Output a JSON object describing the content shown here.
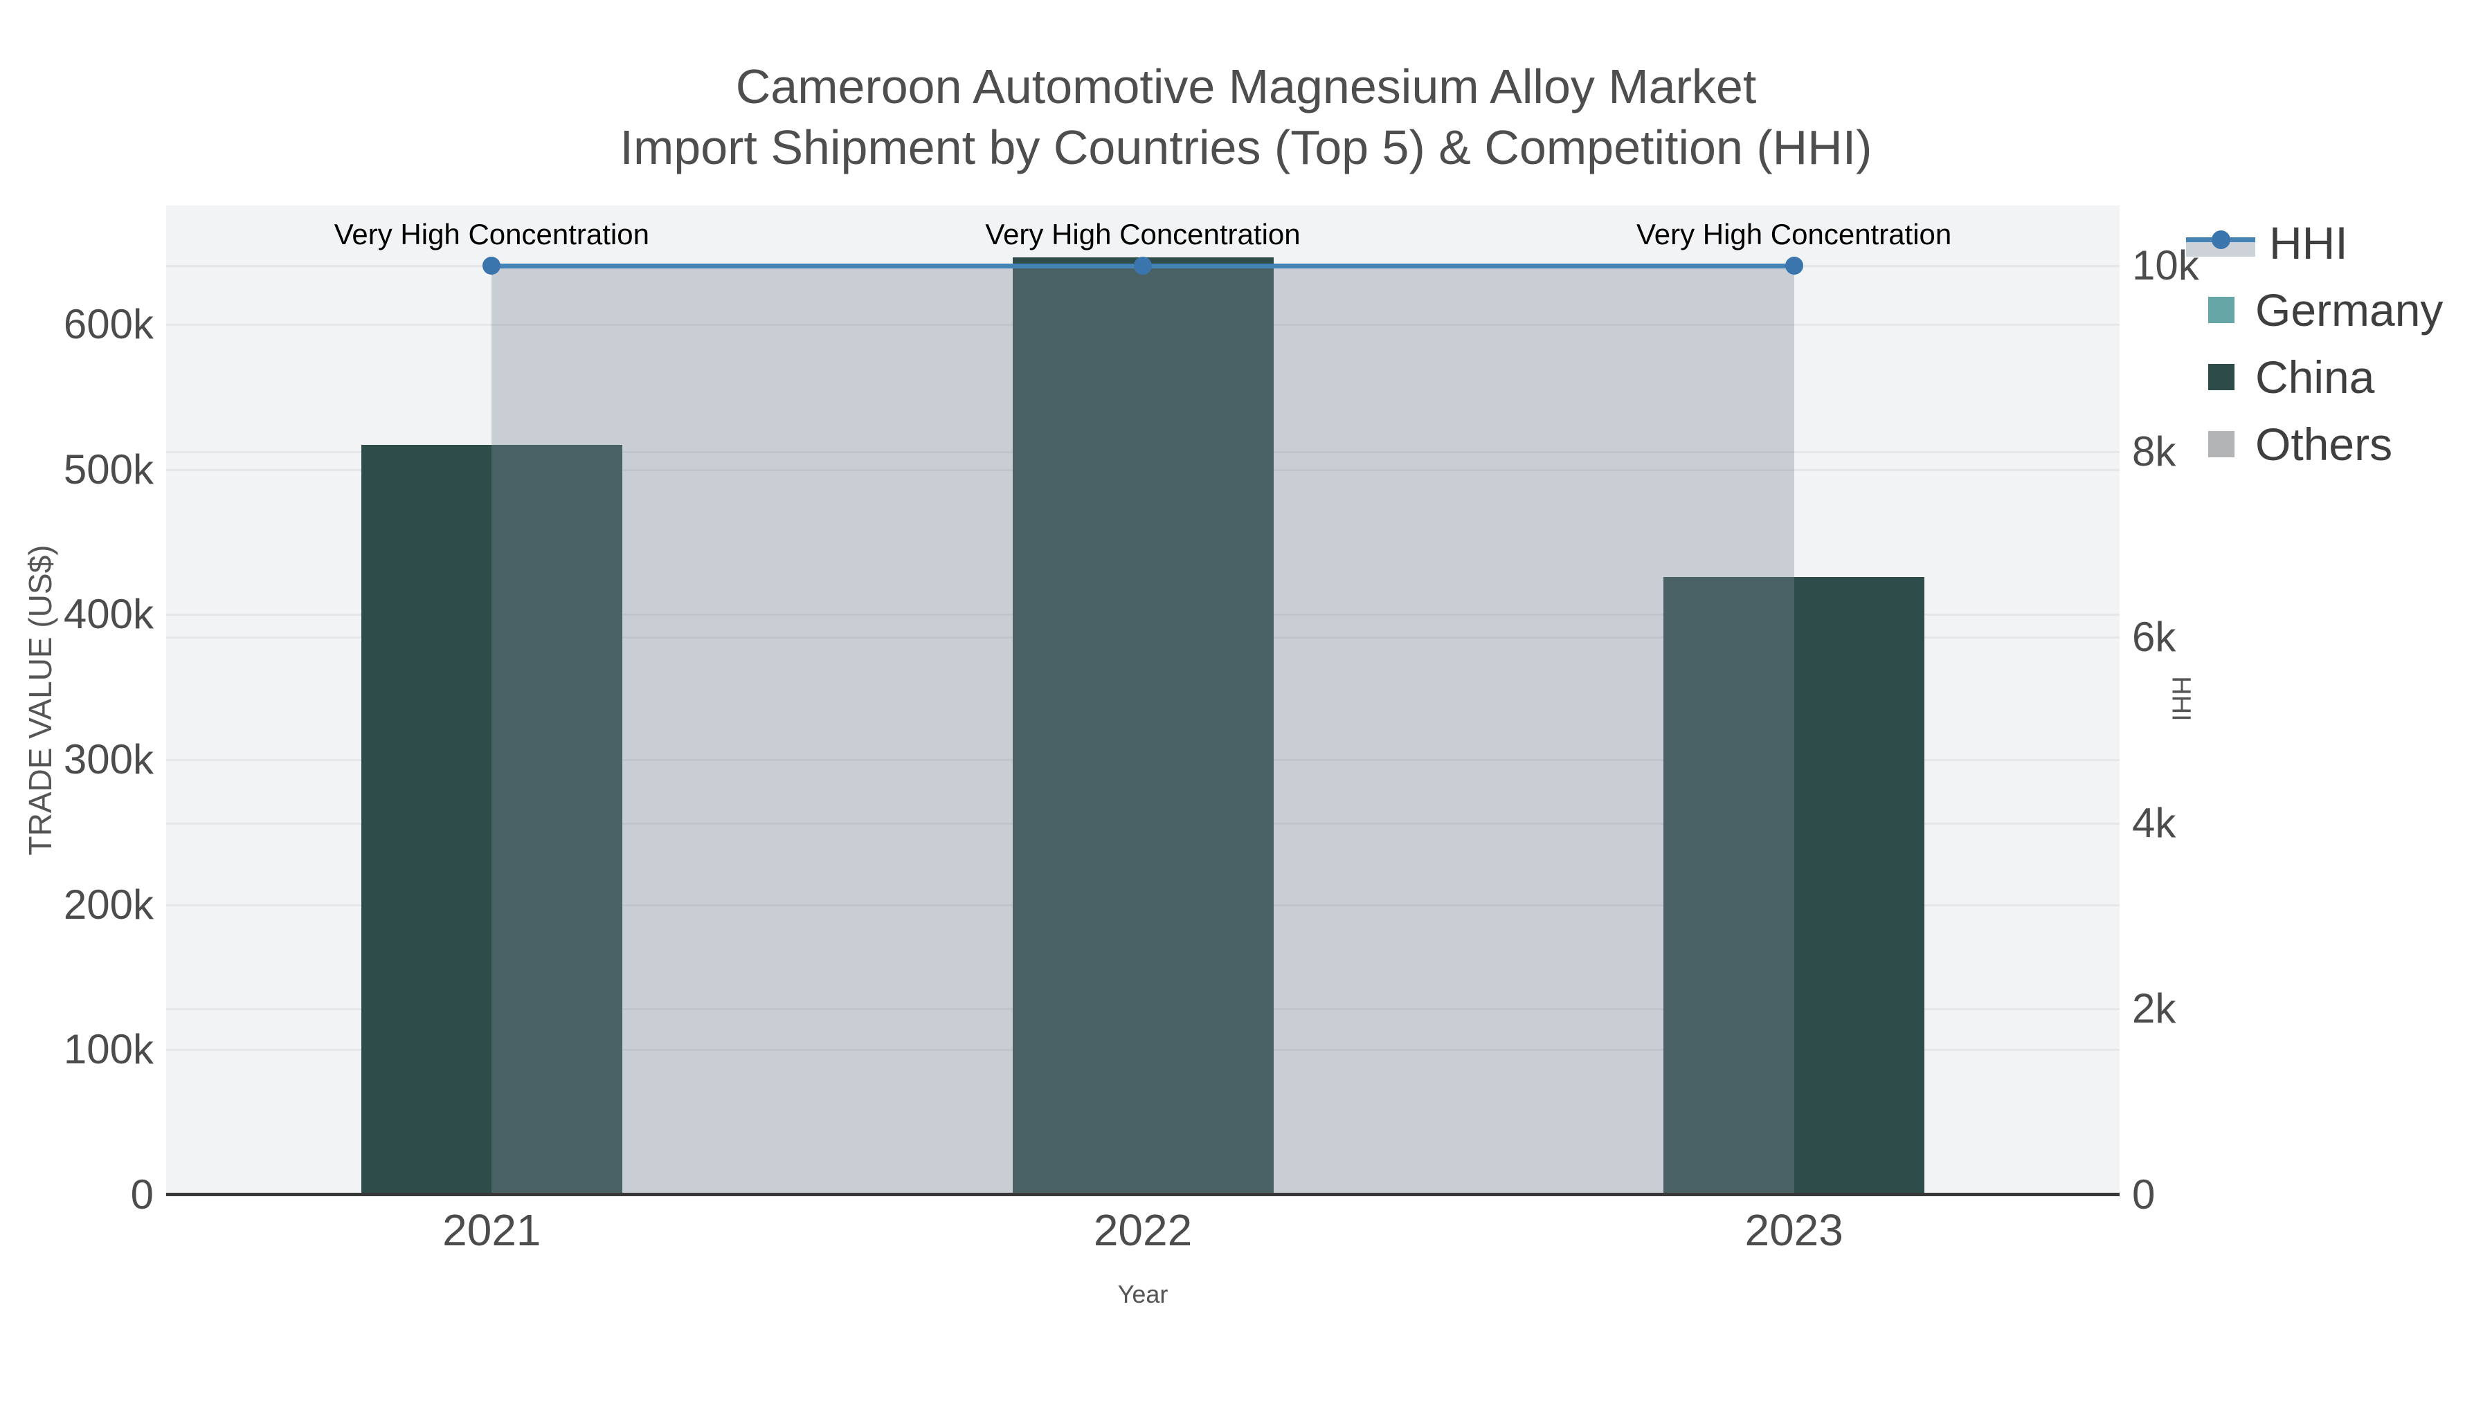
{
  "title": {
    "line1": "Cameroon Automotive Magnesium Alloy Market",
    "line2": "Import Shipment by Countries (Top 5) & Competition (HHI)"
  },
  "axes": {
    "left": {
      "title": "TRADE VALUE (US$)",
      "ticks": [
        {
          "v": 0,
          "label": "0"
        },
        {
          "v": 100000,
          "label": "100k"
        },
        {
          "v": 200000,
          "label": "200k"
        },
        {
          "v": 300000,
          "label": "300k"
        },
        {
          "v": 400000,
          "label": "400k"
        },
        {
          "v": 500000,
          "label": "500k"
        },
        {
          "v": 600000,
          "label": "600k"
        }
      ]
    },
    "right": {
      "title": "HHI",
      "ticks": [
        {
          "v": 0,
          "label": "0"
        },
        {
          "v": 2000,
          "label": "2k"
        },
        {
          "v": 4000,
          "label": "4k"
        },
        {
          "v": 6000,
          "label": "6k"
        },
        {
          "v": 8000,
          "label": "8k"
        },
        {
          "v": 10000,
          "label": "10k"
        }
      ]
    },
    "x": {
      "title": "Year"
    }
  },
  "legend": {
    "items": [
      {
        "label": "HHI"
      },
      {
        "label": "Germany"
      },
      {
        "label": "China"
      },
      {
        "label": "Others"
      }
    ]
  },
  "chart_data": {
    "type": "combo-bar-line",
    "categories": [
      "2021",
      "2022",
      "2023"
    ],
    "bar_series": [
      {
        "name": "Germany",
        "values": [
          0,
          0,
          0
        ],
        "color": "#66a6a7"
      },
      {
        "name": "China",
        "values": [
          517000,
          646000,
          426000
        ],
        "color": "#2e4d4a"
      },
      {
        "name": "Others",
        "values": [
          0,
          0,
          0
        ],
        "color": "#b3b4b5"
      }
    ],
    "line_series": {
      "name": "HHI",
      "axis": "right",
      "values": [
        10000,
        10000,
        10000
      ],
      "color": "#4583b5",
      "marker_color": "#3a76ad",
      "fill_color": "rgba(125,135,152,0.35)"
    },
    "annotations": [
      {
        "category_index": 0,
        "text": "Very High Concentration"
      },
      {
        "category_index": 1,
        "text": "Very High Concentration"
      },
      {
        "category_index": 2,
        "text": "Very High Concentration"
      }
    ],
    "title": "Cameroon Automotive Magnesium Alloy Market — Import Shipment by Countries (Top 5) & Competition (HHI)",
    "xlabel": "Year",
    "ylabel_left": "TRADE VALUE (US$)",
    "ylabel_right": "HHI",
    "ylim_left": [
      0,
      682000
    ],
    "ylim_right": [
      0,
      10650
    ],
    "grid": true,
    "legend_position": "right",
    "plot_bg": "#f2f3f4",
    "grid_color": "#e4e6e9"
  }
}
